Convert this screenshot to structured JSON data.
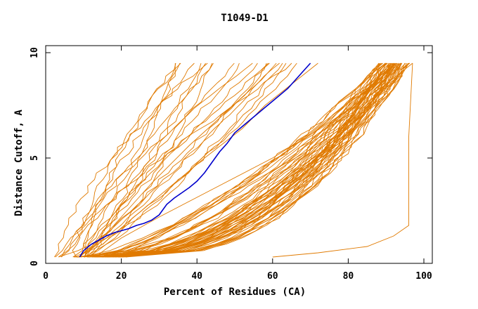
{
  "chart_data": {
    "type": "line",
    "title": "T1049-D1",
    "xlabel": "Percent of Residues (CA)",
    "ylabel": "Distance Cutoff, A",
    "xlim": [
      0,
      102
    ],
    "ylim": [
      0,
      10
    ],
    "xticks": [
      0,
      20,
      40,
      60,
      80,
      100
    ],
    "yticks": [
      0,
      5,
      10
    ],
    "grid": false,
    "legend": "none",
    "colors": {
      "highlight": "#0000cc",
      "others": "#e07a00",
      "axes": "#000000"
    },
    "highlight_series": {
      "x": [
        9,
        10,
        12,
        14,
        16,
        18,
        20,
        22,
        24,
        26,
        28,
        30,
        32,
        34,
        36,
        38,
        40,
        42,
        44,
        46,
        48,
        50,
        52,
        54,
        56,
        58,
        60,
        62,
        64,
        66,
        68,
        70
      ],
      "y": [
        0.3,
        0.6,
        0.9,
        1.1,
        1.3,
        1.45,
        1.55,
        1.65,
        1.8,
        1.9,
        2.05,
        2.3,
        2.8,
        3.1,
        3.35,
        3.6,
        3.9,
        4.3,
        4.8,
        5.3,
        5.7,
        6.2,
        6.5,
        6.8,
        7.1,
        7.4,
        7.7,
        8.0,
        8.3,
        8.7,
        9.1,
        9.5
      ]
    },
    "band_groups": [
      {
        "x0": [
          3,
          12
        ],
        "x80": [
          34,
          68
        ],
        "curv": [
          0.6,
          1.4
        ],
        "count": 22
      },
      {
        "x0": [
          7,
          22
        ],
        "x80": [
          88,
          96
        ],
        "curv": [
          1.4,
          2.8
        ],
        "count": 55
      }
    ],
    "special_series": [
      {
        "x": [
          41,
          48,
          62,
          80,
          92,
          96
        ],
        "y": [
          0.8,
          2.0,
          3.8,
          6.0,
          8.3,
          9.5
        ]
      },
      {
        "x": [
          13,
          20,
          30,
          45,
          60,
          78,
          90,
          97
        ],
        "y": [
          0.3,
          1.2,
          2.2,
          3.6,
          5.0,
          7.0,
          8.5,
          9.5
        ]
      },
      {
        "x": [
          23,
          30,
          42,
          58,
          72,
          84,
          90,
          94
        ],
        "y": [
          0.6,
          1.4,
          2.6,
          4.2,
          5.6,
          7.2,
          8.4,
          9.5
        ]
      },
      {
        "x": [
          60,
          72,
          85,
          92,
          96,
          96,
          96,
          97
        ],
        "y": [
          0.3,
          0.5,
          0.8,
          1.3,
          1.8,
          3.5,
          6.0,
          9.5
        ]
      },
      {
        "x": [
          15,
          22,
          32,
          42,
          52,
          58,
          65,
          72
        ],
        "y": [
          0.9,
          2.0,
          3.5,
          5.0,
          6.4,
          7.5,
          8.5,
          9.5
        ]
      },
      {
        "x": [
          10,
          18,
          28,
          38,
          46,
          52,
          57,
          61
        ],
        "y": [
          0.3,
          1.8,
          3.8,
          5.6,
          6.9,
          7.9,
          8.7,
          9.5
        ]
      }
    ]
  }
}
